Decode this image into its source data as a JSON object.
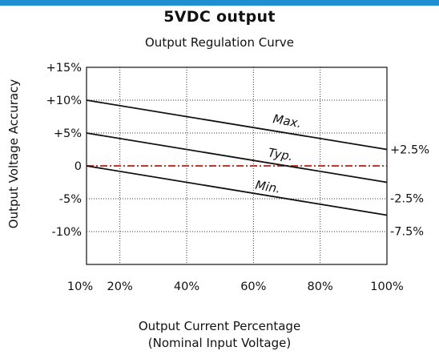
{
  "header": {
    "accent_color": "#1f8fd0"
  },
  "chart_data": {
    "type": "line",
    "suptitle": "5VDC output",
    "title": "Output Regulation Curve",
    "xlabel_line1": "Output Current Percentage",
    "xlabel_line2": "(Nominal Input Voltage)",
    "ylabel": "Output Voltage Accuracy",
    "x_tick_labels": [
      "10%",
      "20%",
      "40%",
      "60%",
      "80%",
      "100%"
    ],
    "x_ticks": [
      10,
      20,
      40,
      60,
      80,
      100
    ],
    "y_tick_labels": [
      "+15%",
      "+10%",
      "+5%",
      "0",
      "-5%",
      "-10%"
    ],
    "y_ticks": [
      15,
      10,
      5,
      0,
      -5,
      -10
    ],
    "xlim": [
      10,
      100
    ],
    "ylim": [
      -15,
      15
    ],
    "grid": "dotted",
    "series": [
      {
        "name": "Max.",
        "x": [
          10,
          100
        ],
        "values": [
          10,
          2.5
        ],
        "end_label": "+2.5%",
        "color": "#111111",
        "style": "solid"
      },
      {
        "name": "Typ.",
        "x": [
          10,
          100
        ],
        "values": [
          5,
          -2.5
        ],
        "end_label": "-2.5%",
        "color": "#111111",
        "style": "solid"
      },
      {
        "name": "Min.",
        "x": [
          10,
          100
        ],
        "values": [
          0,
          -7.5
        ],
        "end_label": "-7.5%",
        "color": "#111111",
        "style": "solid"
      }
    ],
    "reference_line": {
      "y": 0,
      "color": "#c0392b",
      "style": "dash-dot"
    }
  }
}
